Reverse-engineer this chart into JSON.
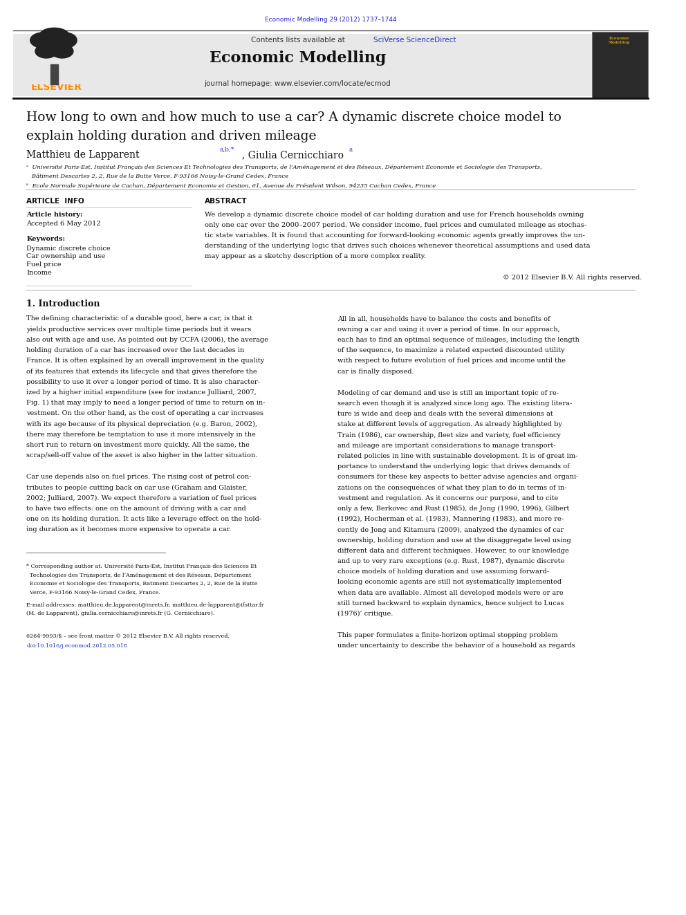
{
  "page_width": 9.92,
  "page_height": 13.23,
  "background_color": "#ffffff",
  "journal_ref": "Economic Modelling 29 (2012) 1737–1744",
  "journal_ref_color": "#2222cc",
  "header_bg": "#e8e8e8",
  "header_journal_name": "Economic Modelling",
  "header_contents_line": "Contents lists available at ",
  "header_sciverse": "SciVerse ScienceDirect",
  "header_homepage": "journal homepage: www.elsevier.com/locate/ecmod",
  "elsevier_color": "#ff8c00",
  "article_title_line1": "How long to own and how much to use a car? A dynamic discrete choice model to",
  "article_title_line2": "explain holding duration and driven mileage",
  "authors": "Matthieu de Lapparent",
  "author_superscript": "a,b,*",
  "author2": ", Giulia Cernicchiaro",
  "author2_superscript": " a",
  "affil_a": "ᵃ  Université Paris-Est, Institut Français des Sciences Et Technologies des Transports, de l’Aménagement et des Réseaux, Département Economie et Sociologie des Transports,",
  "affil_a2": "   Bâtiment Descartes 2, 2, Rue de la Butte Verce, F-93166 Noisy-le-Grand Cedex, France",
  "affil_b": "ᵇ  Ecole Normale Supérieure de Cachan, Département Economie et Gestion, 61, Avenue du Président Wilson, 94235 Cachan Cedex, France",
  "article_info_title": "ARTICLE  INFO",
  "article_history": "Article history:",
  "accepted": "Accepted 6 May 2012",
  "keywords_title": "Keywords:",
  "kw1": "Dynamic discrete choice",
  "kw2": "Car ownership and use",
  "kw3": "Fuel price",
  "kw4": "Income",
  "abstract_title": "ABSTRACT",
  "abstract_line1": "We develop a dynamic discrete choice model of car holding duration and use for French households owning",
  "abstract_line2": "only one car over the 2000–2007 period. We consider income, fuel prices and cumulated mileage as stochas-",
  "abstract_line3": "tic state variables. It is found that accounting for forward-looking economic agents greatly improves the un-",
  "abstract_line4": "derstanding of the underlying logic that drives such choices whenever theoretical assumptions and used data",
  "abstract_line5": "may appear as a sketchy description of a more complex reality.",
  "copyright": "© 2012 Elsevier B.V. All rights reserved.",
  "section1_title": "1. Introduction",
  "issn_line": "0264-9993/$ – see front matter © 2012 Elsevier B.V. All rights reserved.",
  "doi_line": "doi:10.1016/j.econmod.2012.05.018",
  "col1_p1": [
    "The defining characteristic of a durable good, here a car, is that it",
    "yields productive services over multiple time periods but it wears",
    "also out with age and use. As pointed out by CCFA (2006), the average",
    "holding duration of a car has increased over the last decades in",
    "France. It is often explained by an overall improvement in the quality",
    "of its features that extends its lifecycle and that gives therefore the",
    "possibility to use it over a longer period of time. It is also character-",
    "ized by a higher initial expenditure (see for instance Julliard, 2007,",
    "Fig. 1) that may imply to need a longer period of time to return on in-",
    "vestment. On the other hand, as the cost of operating a car increases",
    "with its age because of its physical depreciation (e.g. Baron, 2002),",
    "there may therefore be temptation to use it more intensively in the",
    "short run to return on investment more quickly. All the same, the",
    "scrap/sell-off value of the asset is also higher in the latter situation."
  ],
  "col1_p2": [
    "Car use depends also on fuel prices. The rising cost of petrol con-",
    "tributes to people cutting back on car use (Graham and Glaister,",
    "2002; Julliard, 2007). We expect therefore a variation of fuel prices",
    "to have two effects: one on the amount of driving with a car and",
    "one on its holding duration. It acts like a leverage effect on the hold-",
    "ing duration as it becomes more expensive to operate a car."
  ],
  "fn_lines": [
    "* Corresponding author at: Université Paris-Est, Institut Français des Sciences Et",
    "  Technologies des Transports, de l’Aménagement et des Réseaux, Département",
    "  Economie et Sociologie des Transports, Batiment Descartes 2, 2, Rue de la Butte",
    "  Verce, F-93166 Noisy-le-Grand Cedex, France."
  ],
  "em_lines": [
    "E-mail addresses: matthieu.de.lapparent@inrets.fr, matthieu.de-lapparent@ifsttar.fr",
    "(M. de Lapparent), giulia.cernicchiaro@inrets.fr (G. Cernicchiaro)."
  ],
  "col2_p1": [
    "All in all, households have to balance the costs and benefits of",
    "owning a car and using it over a period of time. In our approach,",
    "each has to find an optimal sequence of mileages, including the length",
    "of the sequence, to maximize a related expected discounted utility",
    "with respect to future evolution of fuel prices and income until the",
    "car is finally disposed."
  ],
  "col2_p2": [
    "Modeling of car demand and use is still an important topic of re-",
    "search even though it is analyzed since long ago. The existing litera-",
    "ture is wide and deep and deals with the several dimensions at",
    "stake at different levels of aggregation. As already highlighted by",
    "Train (1986), car ownership, fleet size and variety, fuel efficiency",
    "and mileage are important considerations to manage transport-",
    "related policies in line with sustainable development. It is of great im-",
    "portance to understand the underlying logic that drives demands of",
    "consumers for these key aspects to better advise agencies and organi-",
    "zations on the consequences of what they plan to do in terms of in-",
    "vestment and regulation. As it concerns our purpose, and to cite",
    "only a few, Berkovec and Rust (1985), de Jong (1990, 1996), Gilbert",
    "(1992), Hocherman et al. (1983), Mannering (1983), and more re-",
    "cently de Jong and Kitamura (2009), analyzed the dynamics of car",
    "ownership, holding duration and use at the disaggregate level using",
    "different data and different techniques. However, to our knowledge",
    "and up to very rare exceptions (e.g. Rust, 1987), dynamic discrete",
    "choice models of holding duration and use assuming forward-",
    "looking economic agents are still not systematically implemented",
    "when data are available. Almost all developed models were or are",
    "still turned backward to explain dynamics, hence subject to Lucas",
    "(1976)’ critique."
  ],
  "col2_p3": [
    "This paper formulates a finite-horizon optimal stopping problem",
    "under uncertainty to describe the behavior of a household as regards"
  ]
}
